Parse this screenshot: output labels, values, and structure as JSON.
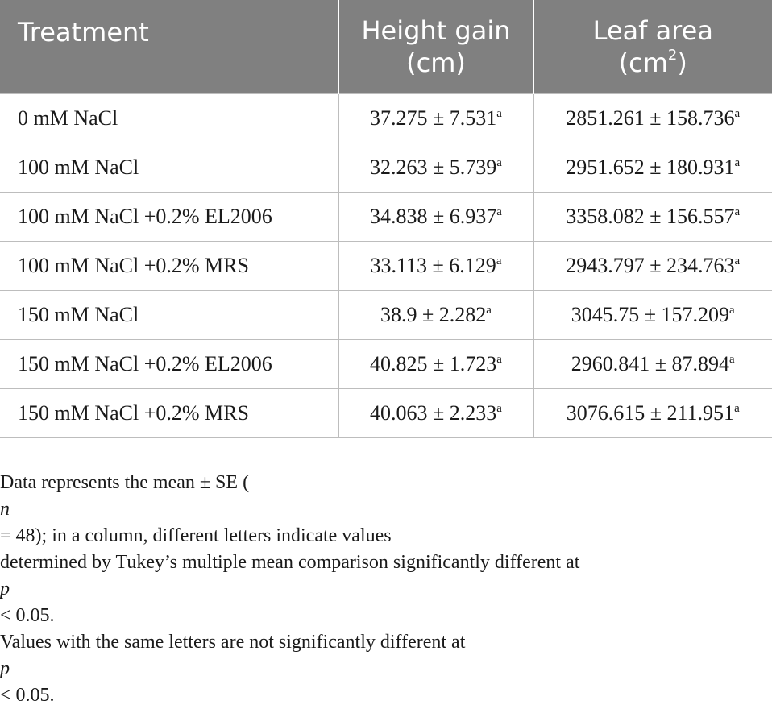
{
  "table": {
    "headers": {
      "treatment": "Treatment",
      "height_gain_line1": "Height gain",
      "height_gain_line2": "(cm)",
      "leaf_area_line1": "Leaf area",
      "leaf_area_line2_pre": "(cm",
      "leaf_area_line2_sup": "2",
      "leaf_area_line2_post": ")"
    },
    "rows": [
      {
        "treatment": "0 mM NaCl",
        "height": "37.275 ± 7.531",
        "height_letter": "a",
        "leaf": "2851.261 ± 158.736",
        "leaf_letter": "a"
      },
      {
        "treatment": "100 mM NaCl",
        "height": "32.263 ± 5.739",
        "height_letter": "a",
        "leaf": "2951.652 ± 180.931",
        "leaf_letter": "a"
      },
      {
        "treatment": "100 mM NaCl +0.2% EL2006",
        "height": "34.838 ± 6.937",
        "height_letter": "a",
        "leaf": "3358.082 ± 156.557",
        "leaf_letter": "a"
      },
      {
        "treatment": "100 mM NaCl +0.2% MRS",
        "height": "33.113 ± 6.129",
        "height_letter": "a",
        "leaf": "2943.797 ± 234.763",
        "leaf_letter": "a"
      },
      {
        "treatment": "150 mM NaCl",
        "height": "38.9 ± 2.282",
        "height_letter": "a",
        "leaf": "3045.75 ± 157.209",
        "leaf_letter": "a"
      },
      {
        "treatment": "150 mM NaCl +0.2% EL2006",
        "height": "40.825 ± 1.723",
        "height_letter": "a",
        "leaf": "2960.841 ± 87.894",
        "leaf_letter": "a"
      },
      {
        "treatment": "150 mM NaCl +0.2% MRS",
        "height": "40.063 ± 2.233",
        "height_letter": "a",
        "leaf": "3076.615 ± 211.951",
        "leaf_letter": "a"
      }
    ]
  },
  "footnote": {
    "line1_a": "Data represents the mean ± SE (",
    "line1_n": "n",
    "line1_b": " = 48); in a column, different letters indicate values",
    "line2_a": "determined by Tukey’s multiple mean comparison significantly different at ",
    "line2_p": "p",
    "line2_b": " < 0.05.",
    "line3_a": "Values with the same letters are not significantly different at ",
    "line3_p": "p",
    "line3_b": " < 0.05."
  },
  "colors": {
    "header_bg": "#808080",
    "header_text": "#ffffff",
    "rule": "#bdbdbd"
  }
}
